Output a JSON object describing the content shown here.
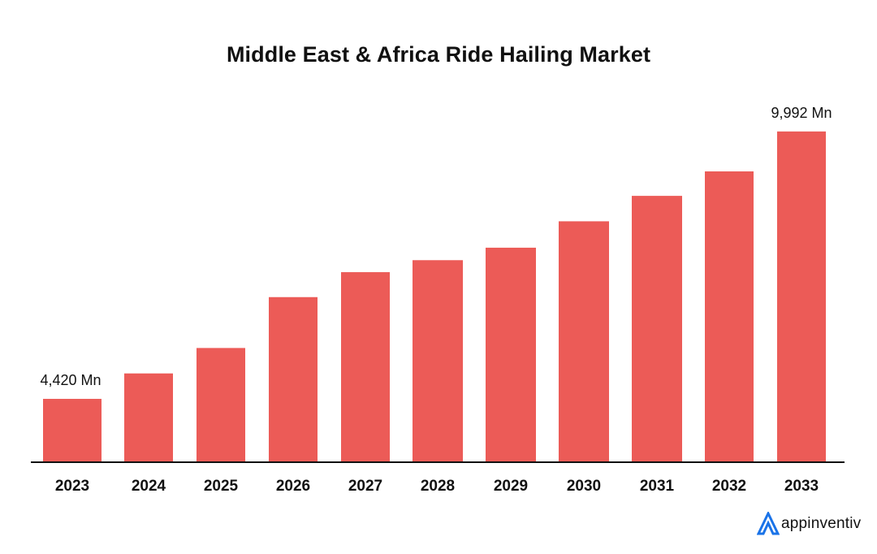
{
  "chart_data": {
    "type": "bar",
    "title": "Middle East & Africa Ride Hailing Market",
    "categories": [
      "2023",
      "2024",
      "2025",
      "2026",
      "2027",
      "2028",
      "2029",
      "2030",
      "2031",
      "2032",
      "2033"
    ],
    "values": [
      4420,
      4950,
      5480,
      6540,
      7060,
      7310,
      7570,
      8120,
      8650,
      9160,
      9992
    ],
    "data_labels": [
      {
        "index": 0,
        "text": "4,420 Mn"
      },
      {
        "index": 10,
        "text": "9,992 Mn"
      }
    ],
    "ylim": [
      3100,
      10700
    ],
    "grid": false,
    "bar_color": "#EC5B57"
  },
  "brand": {
    "name": "appinventiv",
    "icon": "appinventiv-logo-icon",
    "icon_color": "#1A73E8"
  }
}
